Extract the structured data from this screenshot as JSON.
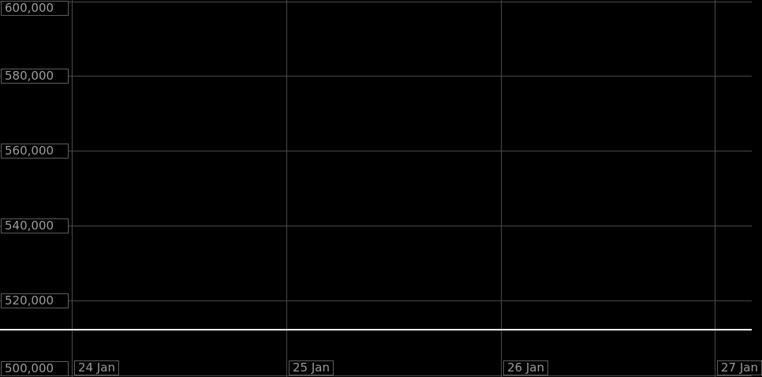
{
  "chart_data": {
    "type": "line",
    "title": "",
    "background": "#000000",
    "grid": true,
    "x_axis": {
      "tick_labels": [
        "24 Jan",
        "25 Jan",
        "26 Jan",
        "27 Jan"
      ]
    },
    "y_axis": {
      "tick_labels": [
        "600,000",
        "580,000",
        "560,000",
        "540,000",
        "520,000",
        "500,000"
      ],
      "tick_values": [
        600000,
        580000,
        560000,
        540000,
        520000,
        500000
      ],
      "ylim": [
        500000,
        600000
      ]
    },
    "series": [
      {
        "name": "",
        "color": "#ffffff",
        "x": [
          "24 Jan",
          "25 Jan",
          "26 Jan",
          "27 Jan"
        ],
        "values": [
          512200,
          512200,
          512200,
          512200
        ]
      }
    ],
    "legend": "none"
  },
  "colors": {
    "background": "#000000",
    "gridline": "#4a4a4a",
    "axis_label_text": "#9c9c9c",
    "axis_label_border": "#5e5e5e",
    "axis_label_background": "#000000",
    "series_line": "#ffffff"
  }
}
